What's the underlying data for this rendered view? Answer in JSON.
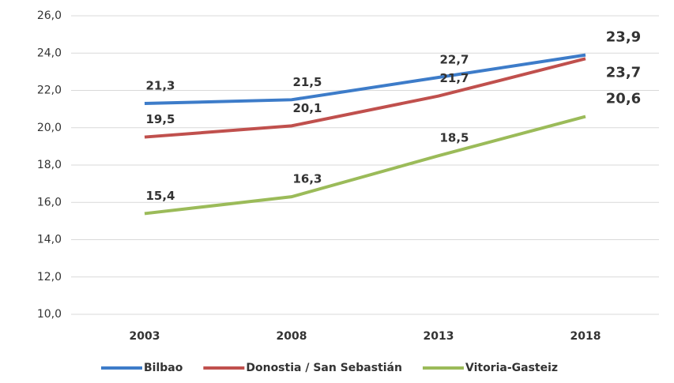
{
  "chart_data": {
    "type": "line",
    "categories": [
      "2003",
      "2008",
      "2013",
      "2018"
    ],
    "series": [
      {
        "name": "Bilbao",
        "color": "#3d7cc9",
        "values": [
          21.3,
          21.5,
          22.7,
          23.9
        ],
        "value_labels": [
          "21,3",
          "21,5",
          "22,7",
          "23,9"
        ]
      },
      {
        "name": "Donostia / San Sebastián",
        "color": "#c0504d",
        "values": [
          19.5,
          20.1,
          21.7,
          23.7
        ],
        "value_labels": [
          "19,5",
          "20,1",
          "21,7",
          "23,7"
        ]
      },
      {
        "name": "Vitoria-Gasteiz",
        "color": "#9bbb59",
        "values": [
          15.4,
          16.3,
          18.5,
          20.6
        ],
        "value_labels": [
          "15,4",
          "16,3",
          "18,5",
          "20,6"
        ]
      }
    ],
    "ylim": [
      10,
      26
    ],
    "yticks": [
      {
        "value": 10,
        "label": "10,0"
      },
      {
        "value": 12,
        "label": "12,0"
      },
      {
        "value": 14,
        "label": "14,0"
      },
      {
        "value": 16,
        "label": "16,0"
      },
      {
        "value": 18,
        "label": "18,0"
      },
      {
        "value": 20,
        "label": "20,0"
      },
      {
        "value": 22,
        "label": "22,0"
      },
      {
        "value": 24,
        "label": "24,0"
      },
      {
        "value": 26,
        "label": "26,0"
      }
    ],
    "grid": true,
    "legend": "bottom"
  }
}
